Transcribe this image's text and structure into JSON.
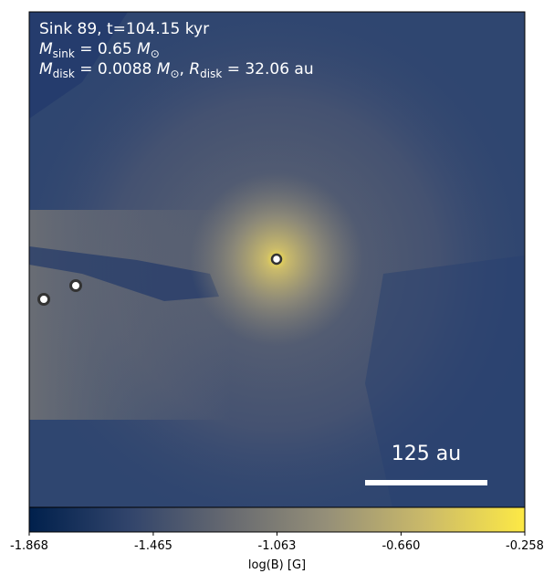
{
  "chart_data": {
    "type": "colormap",
    "title": "Sink 89, t=104.15 kyr",
    "mass_sink": {
      "symbol": "M",
      "sub": "sink",
      "eq": " = 0.65 ",
      "unit": "M",
      "unit_sub": "⊙"
    },
    "mass_disk": {
      "symbol": "M",
      "sub": "disk",
      "eq": " = 0.0088 ",
      "unit": "M",
      "unit_sub": "⊙",
      "sep": ", ",
      "symbol2": "R",
      "sub2": "disk",
      "eq2": " = 32.06 au"
    },
    "scale_bar_label": "125 au",
    "colorbar": {
      "label": "log(B) [G]",
      "xlim": [
        -1.868,
        -0.258
      ],
      "xticks": [
        -1.868,
        -1.465,
        -1.063,
        {
          "value": -0.66,
          "label": "-0.660"
        },
        -0.258
      ],
      "colors": [
        "#00204c",
        "#31446b",
        "#666970",
        "#958f78",
        "#cbba69",
        "#fde945"
      ]
    }
  }
}
